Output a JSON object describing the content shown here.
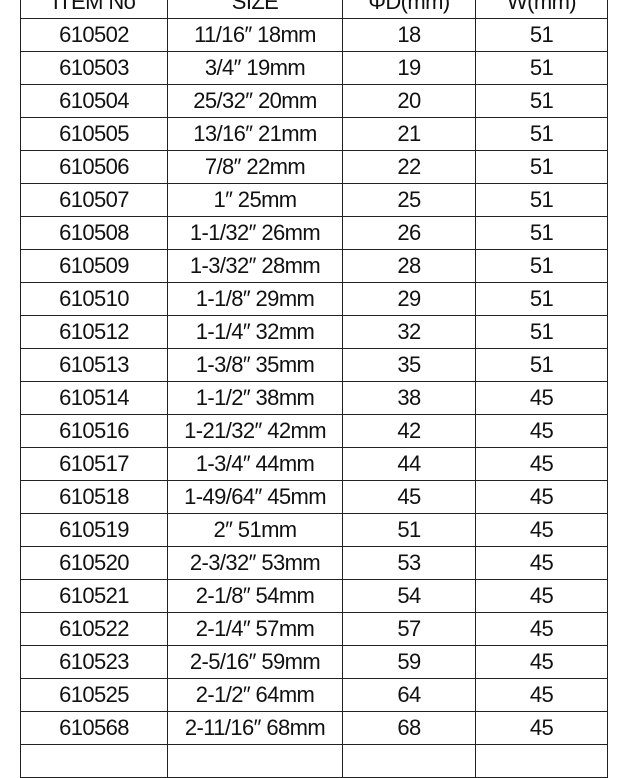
{
  "table": {
    "headers": [
      "ITEM No",
      "SIZE",
      "ΦD(mm)",
      "W(mm)"
    ],
    "rows": [
      [
        "610502",
        "11/16″  18mm",
        "18",
        "51"
      ],
      [
        "610503",
        "3/4″  19mm",
        "19",
        "51"
      ],
      [
        "610504",
        "25/32″  20mm",
        "20",
        "51"
      ],
      [
        "610505",
        "13/16″  21mm",
        "21",
        "51"
      ],
      [
        "610506",
        "7/8″  22mm",
        "22",
        "51"
      ],
      [
        "610507",
        "1″  25mm",
        "25",
        "51"
      ],
      [
        "610508",
        "1-1/32″  26mm",
        "26",
        "51"
      ],
      [
        "610509",
        "1-3/32″  28mm",
        "28",
        "51"
      ],
      [
        "610510",
        "1-1/8″  29mm",
        "29",
        "51"
      ],
      [
        "610512",
        "1-1/4″  32mm",
        "32",
        "51"
      ],
      [
        "610513",
        "1-3/8″  35mm",
        "35",
        "51"
      ],
      [
        "610514",
        "1-1/2″  38mm",
        "38",
        "45"
      ],
      [
        "610516",
        "1-21/32″  42mm",
        "42",
        "45"
      ],
      [
        "610517",
        "1-3/4″  44mm",
        "44",
        "45"
      ],
      [
        "610518",
        "1-49/64″  45mm",
        "45",
        "45"
      ],
      [
        "610519",
        "2″  51mm",
        "51",
        "45"
      ],
      [
        "610520",
        "2-3/32″  53mm",
        "53",
        "45"
      ],
      [
        "610521",
        "2-1/8″  54mm",
        "54",
        "45"
      ],
      [
        "610522",
        "2-1/4″  57mm",
        "57",
        "45"
      ],
      [
        "610523",
        "2-5/16″  59mm",
        "59",
        "45"
      ],
      [
        "610525",
        "2-1/2″  64mm",
        "64",
        "45"
      ],
      [
        "610568",
        "2-11/16″  68mm",
        "68",
        "45"
      ]
    ]
  }
}
